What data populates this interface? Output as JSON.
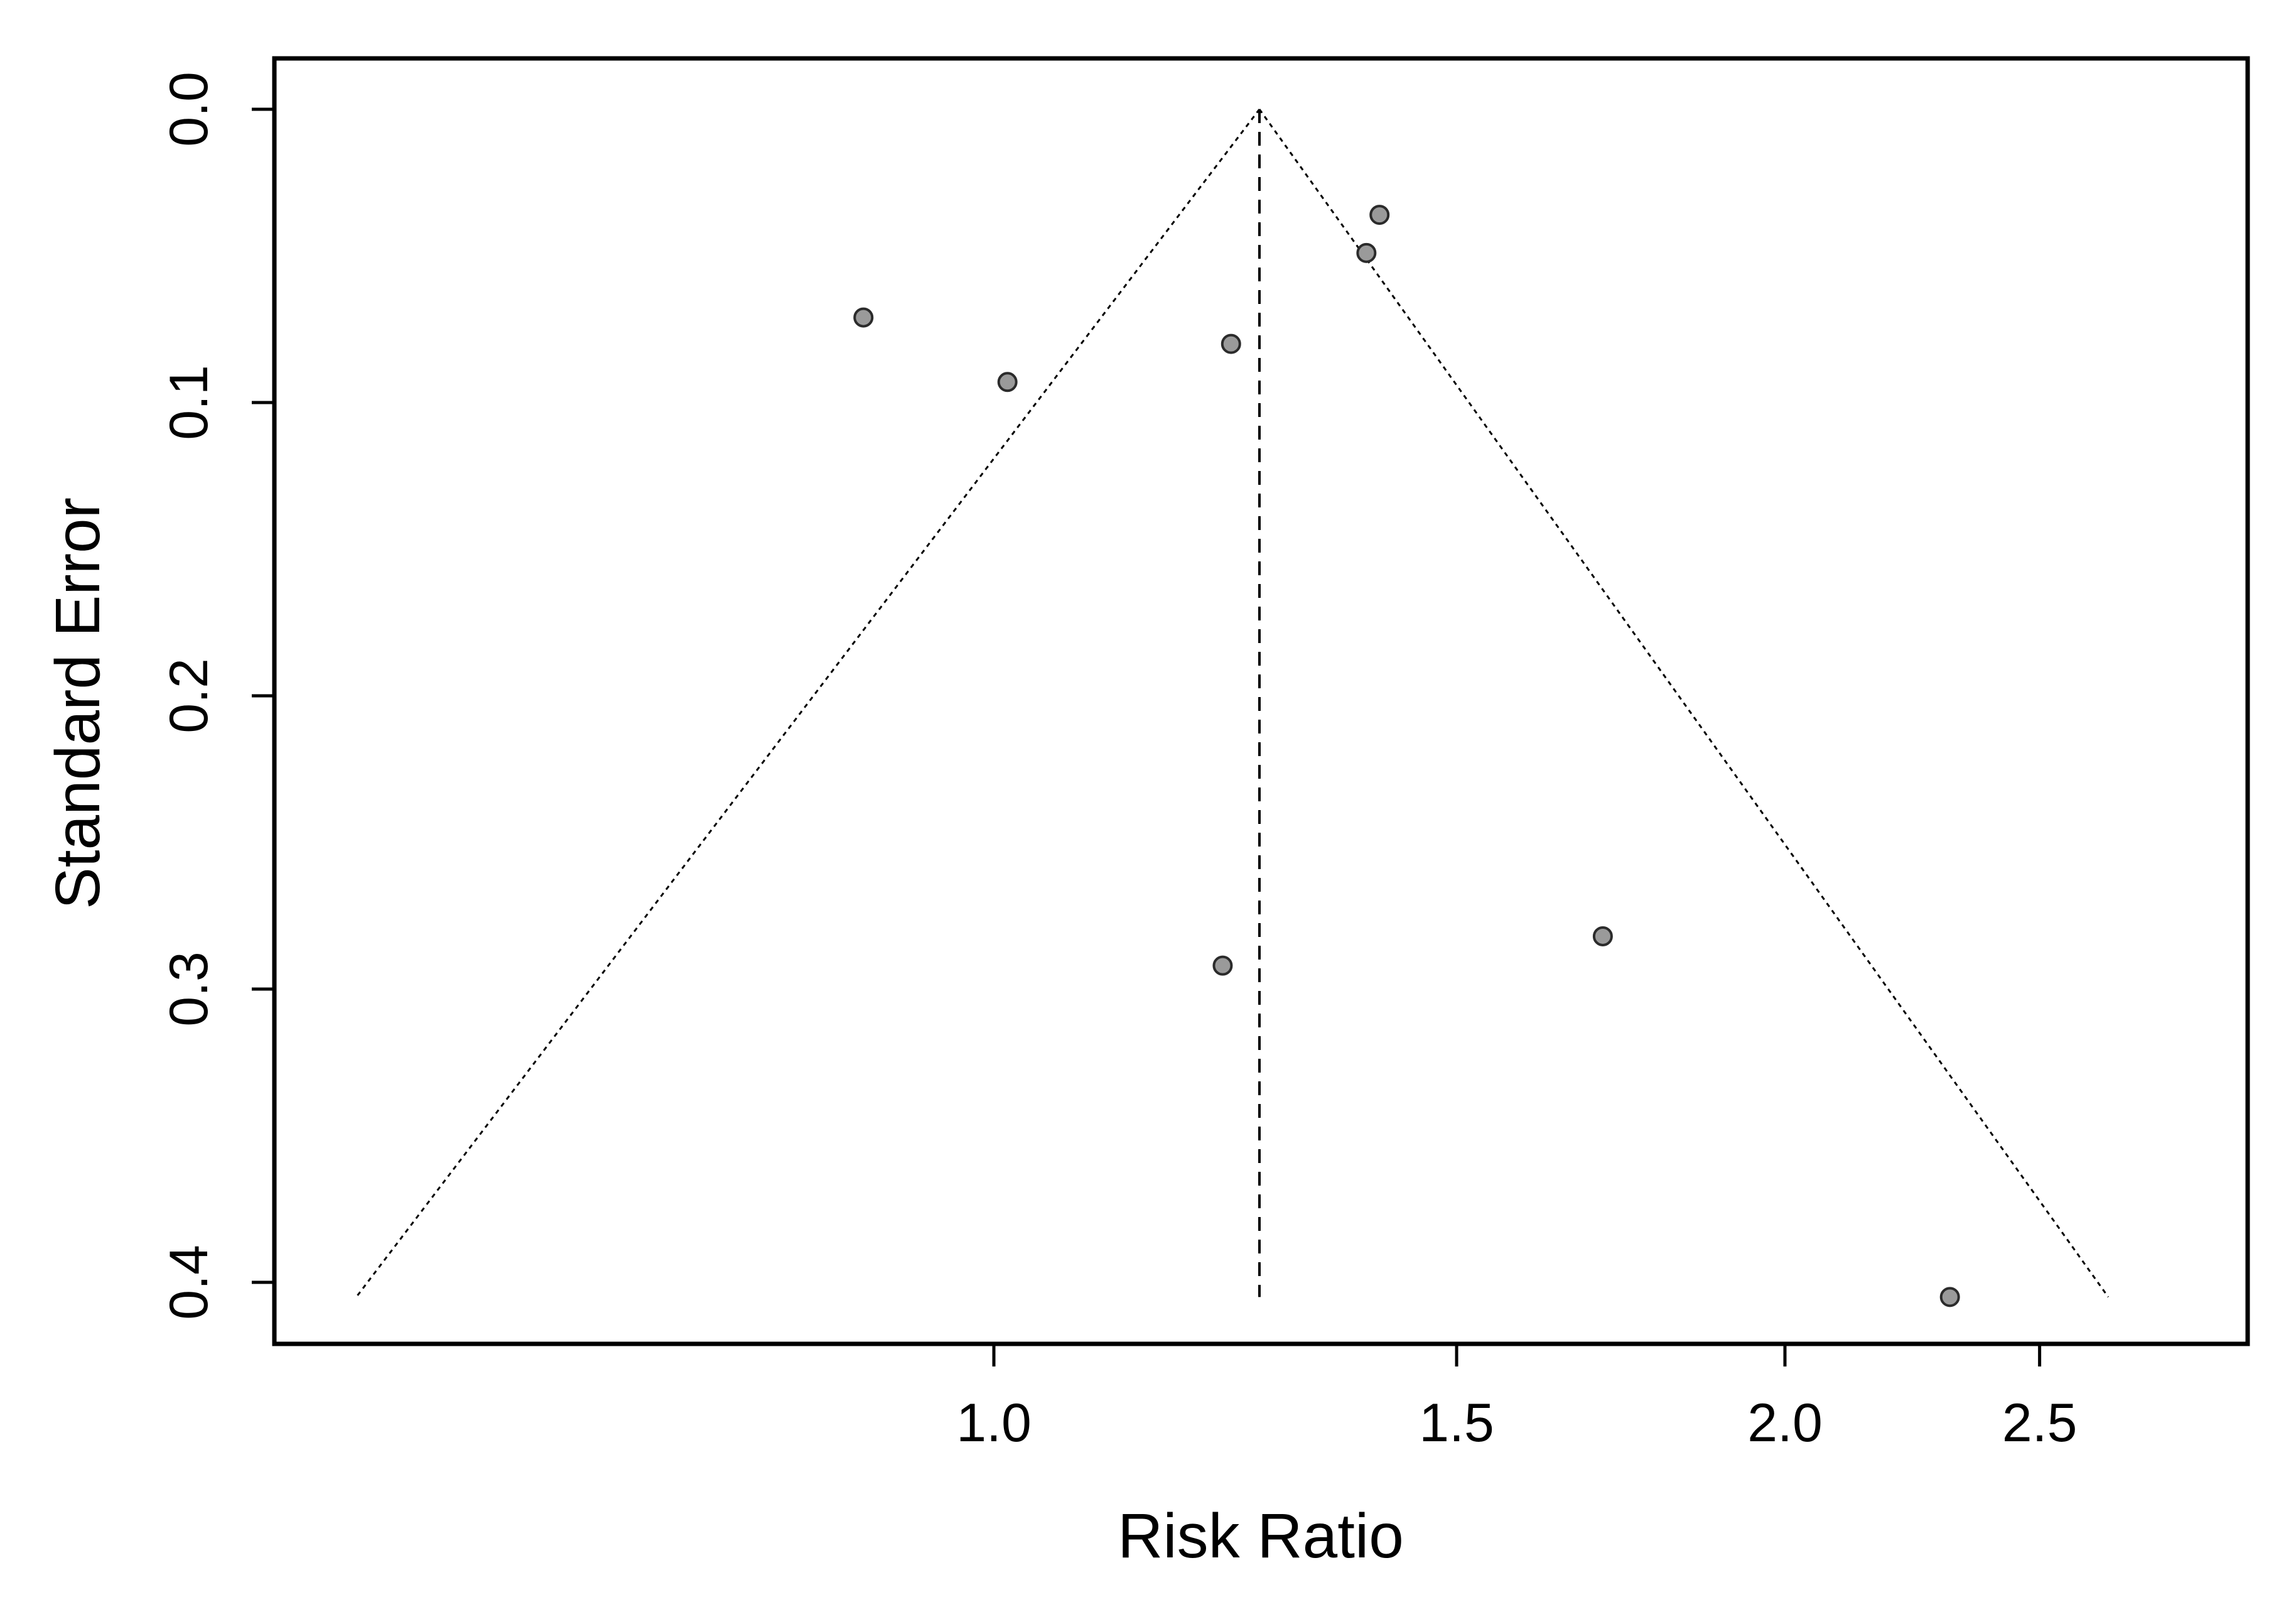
{
  "chart_data": {
    "type": "scatter",
    "chart_kind": "funnel plot",
    "title": "",
    "xlabel": "Risk Ratio",
    "ylabel": "Standard Error",
    "x_scale": "log",
    "x_ticks": [
      1.0,
      1.5,
      2.0,
      2.5
    ],
    "x_tick_labels": [
      "1.0",
      "1.5",
      "2.0",
      "2.5"
    ],
    "y_ticks": [
      0.0,
      0.1,
      0.2,
      0.3,
      0.4
    ],
    "y_tick_labels": [
      "0.0",
      "0.1",
      "0.2",
      "0.3",
      "0.4"
    ],
    "xlim": [
      0.6,
      2.8
    ],
    "ylim": [
      0.42,
      -0.02
    ],
    "y_reversed": true,
    "grid": false,
    "pooled_estimate": 1.262,
    "funnel_limits": {
      "se_max": 0.405,
      "lower_at_se_max": 0.572,
      "upper_at_se_max": 2.655
    },
    "points": [
      {
        "x": 1.402,
        "y": 0.036
      },
      {
        "x": 1.386,
        "y": 0.049
      },
      {
        "x": 0.892,
        "y": 0.071
      },
      {
        "x": 1.231,
        "y": 0.08
      },
      {
        "x": 1.012,
        "y": 0.093
      },
      {
        "x": 1.222,
        "y": 0.292
      },
      {
        "x": 1.705,
        "y": 0.282
      },
      {
        "x": 2.311,
        "y": 0.405
      }
    ],
    "colors": {
      "point_fill": "#9a9a9a",
      "point_stroke": "#2b2b2b",
      "lines": "#000000",
      "background": "#ffffff"
    }
  }
}
